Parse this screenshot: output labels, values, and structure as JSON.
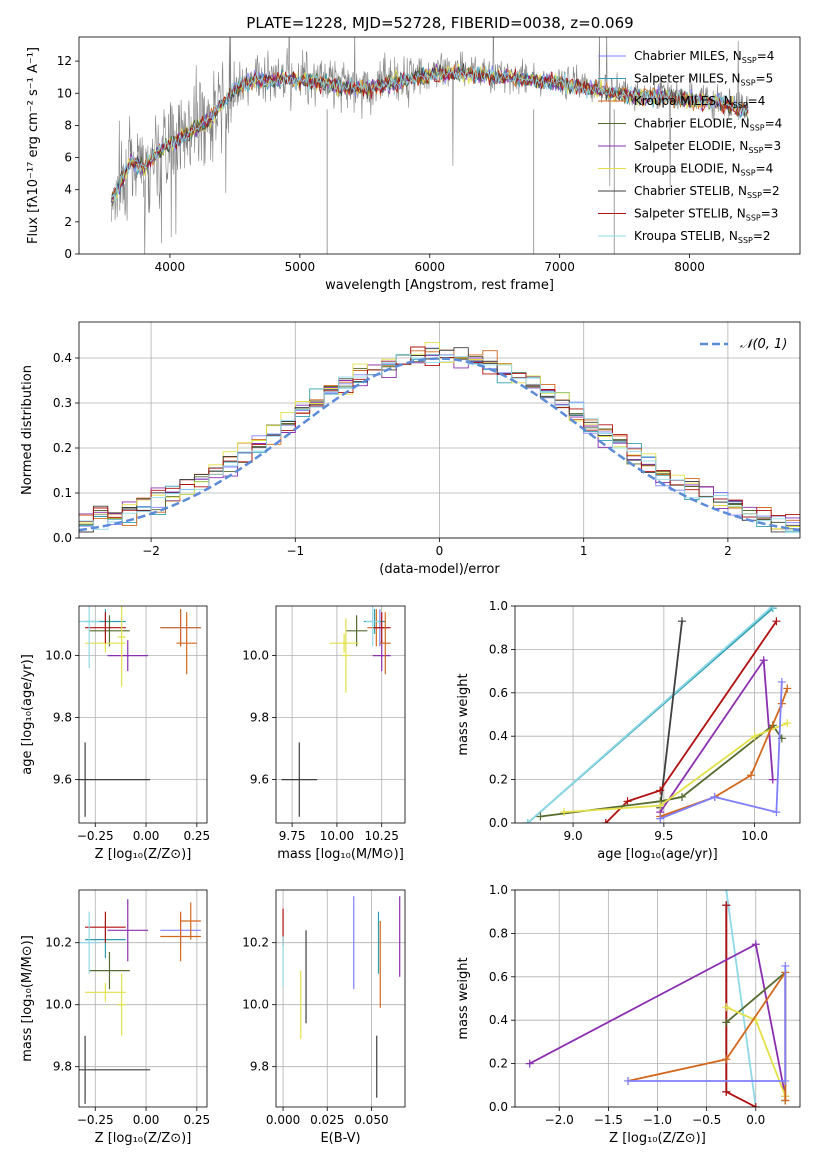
{
  "figure": {
    "title": "PLATE=1228, MJD=52728, FIBERID=0038, z=0.069"
  },
  "colors": [
    "#7f7fff",
    "#2f9fb0",
    "#d2691e",
    "#556b2f",
    "#8b2fb0",
    "#e3e048",
    "#3f3f3f",
    "#b01010",
    "#8fd8e8"
  ],
  "chart_data": [
    {
      "id": "spectrum",
      "type": "line",
      "title": "PLATE=1228, MJD=52728, FIBERID=0038, z=0.069",
      "xlabel": "wavelength [Angstrom, rest frame]",
      "ylabel": "Flux [fλ10⁻¹⁷ erg cm⁻² s⁻¹ A⁻¹]",
      "xlim": [
        3300,
        8850
      ],
      "ylim": [
        0,
        13.5
      ],
      "xticks": [
        4000,
        5000,
        6000,
        7000,
        8000
      ],
      "yticks": [
        0,
        2,
        4,
        6,
        8,
        10,
        12
      ],
      "grid": false,
      "legend_position": "top-right",
      "data_color": "#808080",
      "data_x": [
        3550,
        3700,
        3800,
        3900,
        4000,
        4100,
        4200,
        4300,
        4400,
        4500,
        4600,
        4700,
        4800,
        4900,
        5000,
        5200,
        5400,
        5600,
        5800,
        6000,
        6200,
        6400,
        6600,
        6800,
        7000,
        7200,
        7400,
        7600,
        7800,
        8000,
        8200,
        8400
      ],
      "data_y": [
        3.5,
        6.0,
        5.5,
        6.5,
        7.0,
        7.5,
        8.0,
        8.5,
        9.5,
        10.5,
        10.8,
        11.0,
        11.0,
        11.2,
        11.0,
        10.8,
        10.5,
        10.6,
        11.0,
        11.3,
        11.5,
        11.3,
        11.2,
        11.0,
        10.8,
        10.5,
        10.2,
        10.0,
        10.0,
        9.8,
        9.6,
        9.2
      ],
      "series": [
        {
          "name": "Chabrier MILES, N_SSP=4"
        },
        {
          "name": "Salpeter MILES, N_SSP=5"
        },
        {
          "name": "Kroupa MILES, N_SSP=4"
        },
        {
          "name": "Chabrier ELODIE, N_SSP=4"
        },
        {
          "name": "Salpeter ELODIE, N_SSP=3"
        },
        {
          "name": "Kroupa ELODIE, N_SSP=4"
        },
        {
          "name": "Chabrier STELIB, N_SSP=2"
        },
        {
          "name": "Salpeter STELIB, N_SSP=3"
        },
        {
          "name": "Kroupa STELIB, N_SSP=2"
        }
      ],
      "legend": [
        {
          "base": "Chabrier MILES, N",
          "sub": "SSP",
          "tail": "=4"
        },
        {
          "base": "Salpeter MILES, N",
          "sub": "SSP",
          "tail": "=5"
        },
        {
          "base": "Kroupa MILES, N",
          "sub": "SSP",
          "tail": "=4"
        },
        {
          "base": "Chabrier ELODIE, N",
          "sub": "SSP",
          "tail": "=4"
        },
        {
          "base": "Salpeter ELODIE, N",
          "sub": "SSP",
          "tail": "=3"
        },
        {
          "base": "Kroupa ELODIE, N",
          "sub": "SSP",
          "tail": "=4"
        },
        {
          "base": "Chabrier STELIB, N",
          "sub": "SSP",
          "tail": "=2"
        },
        {
          "base": "Salpeter STELIB, N",
          "sub": "SSP",
          "tail": "=3"
        },
        {
          "base": "Kroupa STELIB, N",
          "sub": "SSP",
          "tail": "=2"
        }
      ]
    },
    {
      "id": "residuals",
      "type": "line",
      "xlabel": "(data-model)/error",
      "ylabel": "Normed distribution",
      "xlim": [
        -2.5,
        2.5
      ],
      "ylim": [
        0,
        0.48
      ],
      "xticks": [
        -2,
        -1,
        0,
        1,
        2
      ],
      "yticks": [
        0.0,
        0.1,
        0.2,
        0.3,
        0.4
      ],
      "grid": true,
      "legend_position": "top-right",
      "legend_label": "𝒩(0, 1)",
      "gaussian": {
        "mean": 0,
        "sigma": 1
      },
      "bin_width": 0.1
    },
    {
      "id": "age-vs-Z",
      "type": "scatter",
      "xlabel": "Z [log₁₀(Z/Z⊙)]",
      "ylabel": "age  [log₁₀(age/yr)]",
      "xlim": [
        -0.33,
        0.3
      ],
      "ylim": [
        9.46,
        10.16
      ],
      "xticks": [
        -0.25,
        0.0,
        0.25
      ],
      "xtick_labels": [
        "−0.25",
        "0.00",
        "0.25"
      ],
      "yticks": [
        9.6,
        9.8,
        10.0
      ],
      "ytick_labels": [
        "9.6",
        "9.8",
        "10.0"
      ],
      "grid": true,
      "points": [
        {
          "x": 0.17,
          "y": 10.09,
          "xerr": 0.1,
          "yerr": 0.06,
          "c": 0
        },
        {
          "x": -0.2,
          "y": 10.11,
          "xerr": 0.1,
          "yerr": 0.04,
          "c": 1
        },
        {
          "x": 0.17,
          "y": 10.09,
          "xerr": 0.1,
          "yerr": 0.06,
          "c": 2
        },
        {
          "x": -0.18,
          "y": 10.08,
          "xerr": 0.1,
          "yerr": 0.05,
          "c": 3
        },
        {
          "x": -0.09,
          "y": 10.0,
          "xerr": 0.1,
          "yerr": 0.05,
          "c": 4
        },
        {
          "x": -0.2,
          "y": 10.04,
          "xerr": 0.1,
          "yerr": 0.03,
          "c": 5
        },
        {
          "x": -0.3,
          "y": 9.6,
          "xerr": 0.32,
          "yerr": 0.12,
          "c": 6
        },
        {
          "x": -0.2,
          "y": 10.09,
          "xerr": 0.1,
          "yerr": 0.05,
          "c": 7
        },
        {
          "x": -0.28,
          "y": 10.11,
          "xerr": 0.05,
          "yerr": 0.15,
          "c": 8
        },
        {
          "x": 0.2,
          "y": 10.04,
          "xerr": 0.05,
          "yerr": 0.1,
          "c": 2
        },
        {
          "x": -0.12,
          "y": 10.06,
          "xerr": 0.02,
          "yerr": 0.16,
          "c": 5
        }
      ]
    },
    {
      "id": "age-vs-mass",
      "type": "scatter",
      "xlabel": "mass [log₁₀(M/M⊙)]",
      "ylabel": "",
      "xlim": [
        9.66,
        10.38
      ],
      "ylim": [
        9.46,
        10.16
      ],
      "xticks": [
        9.75,
        10.0,
        10.25
      ],
      "xtick_labels": [
        "9.75",
        "10.00",
        "10.25"
      ],
      "yticks": [
        9.6,
        9.8,
        10.0
      ],
      "ytick_labels": [
        "9.6",
        "9.8",
        "10.0"
      ],
      "grid": true,
      "points": [
        {
          "x": 10.24,
          "y": 10.09,
          "xerr": 0.05,
          "yerr": 0.06,
          "c": 0
        },
        {
          "x": 10.21,
          "y": 10.11,
          "xerr": 0.06,
          "yerr": 0.04,
          "c": 1
        },
        {
          "x": 10.22,
          "y": 10.09,
          "xerr": 0.05,
          "yerr": 0.06,
          "c": 2
        },
        {
          "x": 10.11,
          "y": 10.08,
          "xerr": 0.06,
          "yerr": 0.05,
          "c": 3
        },
        {
          "x": 10.25,
          "y": 10.0,
          "xerr": 0.05,
          "yerr": 0.05,
          "c": 4
        },
        {
          "x": 10.04,
          "y": 10.04,
          "xerr": 0.08,
          "yerr": 0.03,
          "c": 5
        },
        {
          "x": 9.79,
          "y": 9.6,
          "xerr": 0.1,
          "yerr": 0.12,
          "c": 6
        },
        {
          "x": 10.25,
          "y": 10.09,
          "xerr": 0.05,
          "yerr": 0.05,
          "c": 7
        },
        {
          "x": 10.2,
          "y": 10.11,
          "xerr": 0.04,
          "yerr": 0.08,
          "c": 8
        },
        {
          "x": 10.27,
          "y": 10.04,
          "xerr": 0.03,
          "yerr": 0.1,
          "c": 2
        },
        {
          "x": 10.05,
          "y": 10.0,
          "xerr": 0.02,
          "yerr": 0.12,
          "c": 5
        }
      ]
    },
    {
      "id": "weight-vs-age",
      "type": "line",
      "xlabel": "age  [log₁₀(age/yr)]",
      "ylabel": "mass weight",
      "xlim": [
        8.68,
        10.25
      ],
      "ylim": [
        0,
        1.0
      ],
      "xticks": [
        9.0,
        9.5,
        10.0
      ],
      "xtick_labels": [
        "9.0",
        "9.5",
        "10.0"
      ],
      "yticks": [
        0.0,
        0.2,
        0.4,
        0.6,
        0.8,
        1.0
      ],
      "ytick_labels": [
        "0.0",
        "0.2",
        "0.4",
        "0.6",
        "0.8",
        "1.0"
      ],
      "grid": true,
      "series": [
        {
          "c": 1,
          "x": [
            8.75,
            10.1
          ],
          "y": [
            0.0,
            0.99
          ]
        },
        {
          "c": 8,
          "x": [
            8.75,
            10.1
          ],
          "y": [
            0.0,
            1.0
          ]
        },
        {
          "c": 6,
          "x": [
            9.48,
            9.6
          ],
          "y": [
            0.07,
            0.93
          ]
        },
        {
          "c": 7,
          "x": [
            9.18,
            9.3,
            9.48,
            10.12
          ],
          "y": [
            0.0,
            0.1,
            0.15,
            0.93
          ]
        },
        {
          "c": 4,
          "x": [
            9.48,
            10.05,
            10.1
          ],
          "y": [
            0.05,
            0.75,
            0.2
          ]
        },
        {
          "c": 3,
          "x": [
            8.82,
            9.48,
            9.6,
            10.1,
            10.15
          ],
          "y": [
            0.03,
            0.1,
            0.12,
            0.45,
            0.39
          ]
        },
        {
          "c": 5,
          "x": [
            8.95,
            9.48,
            10.0,
            10.18
          ],
          "y": [
            0.05,
            0.08,
            0.4,
            0.46
          ]
        },
        {
          "c": 2,
          "x": [
            9.48,
            9.78,
            9.98,
            10.15,
            10.18
          ],
          "y": [
            0.03,
            0.12,
            0.22,
            0.55,
            0.62
          ]
        },
        {
          "c": 0,
          "x": [
            9.48,
            9.78,
            10.12,
            10.15
          ],
          "y": [
            0.02,
            0.12,
            0.05,
            0.65
          ]
        }
      ]
    },
    {
      "id": "mass-vs-Z",
      "type": "scatter",
      "xlabel": "Z [log₁₀(Z/Z⊙)]",
      "ylabel": "mass [log₁₀(M/M⊙)]",
      "xlim": [
        -0.33,
        0.3
      ],
      "ylim": [
        9.67,
        10.37
      ],
      "xticks": [
        -0.25,
        0.0,
        0.25
      ],
      "xtick_labels": [
        "−0.25",
        "0.00",
        "0.25"
      ],
      "yticks": [
        9.8,
        10.0,
        10.2
      ],
      "ytick_labels": [
        "9.8",
        "10.0",
        "10.2"
      ],
      "grid": true,
      "points": [
        {
          "x": 0.17,
          "y": 10.24,
          "xerr": 0.1,
          "yerr": 0.05,
          "c": 0
        },
        {
          "x": -0.2,
          "y": 10.21,
          "xerr": 0.1,
          "yerr": 0.06,
          "c": 1
        },
        {
          "x": 0.17,
          "y": 10.22,
          "xerr": 0.1,
          "yerr": 0.08,
          "c": 2
        },
        {
          "x": -0.18,
          "y": 10.11,
          "xerr": 0.1,
          "yerr": 0.06,
          "c": 3
        },
        {
          "x": -0.09,
          "y": 10.24,
          "xerr": 0.1,
          "yerr": 0.1,
          "c": 4
        },
        {
          "x": -0.2,
          "y": 10.04,
          "xerr": 0.1,
          "yerr": 0.03,
          "c": 5
        },
        {
          "x": -0.3,
          "y": 9.79,
          "xerr": 0.32,
          "yerr": 0.11,
          "c": 6
        },
        {
          "x": -0.2,
          "y": 10.25,
          "xerr": 0.1,
          "yerr": 0.05,
          "c": 7
        },
        {
          "x": -0.28,
          "y": 10.2,
          "xerr": 0.05,
          "yerr": 0.1,
          "c": 8
        },
        {
          "x": 0.22,
          "y": 10.27,
          "xerr": 0.05,
          "yerr": 0.06,
          "c": 2
        },
        {
          "x": -0.12,
          "y": 10.0,
          "xerr": 0.02,
          "yerr": 0.1,
          "c": 5
        }
      ]
    },
    {
      "id": "mass-vs-ebv",
      "type": "scatter",
      "xlabel": "E(B-V)",
      "ylabel": "",
      "xlim": [
        -0.004,
        0.069
      ],
      "ylim": [
        9.67,
        10.37
      ],
      "xticks": [
        0.0,
        0.025,
        0.05
      ],
      "xtick_labels": [
        "0.000",
        "0.025",
        "0.050"
      ],
      "yticks": [
        9.8,
        10.0,
        10.2
      ],
      "ytick_labels": [
        "9.8",
        "10.0",
        "10.2"
      ],
      "grid": true,
      "points": [
        {
          "x": 0.0,
          "y": 10.25,
          "xerr": 0,
          "yerr": 0.06,
          "c": 7
        },
        {
          "x": 0.0,
          "y": 10.14,
          "xerr": 0,
          "yerr": 0.08,
          "c": 8
        },
        {
          "x": 0.01,
          "y": 10.0,
          "xerr": 0,
          "yerr": 0.11,
          "c": 5
        },
        {
          "x": 0.013,
          "y": 10.09,
          "xerr": 0,
          "yerr": 0.15,
          "c": 6
        },
        {
          "x": 0.04,
          "y": 10.2,
          "xerr": 0,
          "yerr": 0.15,
          "c": 0
        },
        {
          "x": 0.053,
          "y": 9.8,
          "xerr": 0,
          "yerr": 0.1,
          "c": 6
        },
        {
          "x": 0.054,
          "y": 10.2,
          "xerr": 0,
          "yerr": 0.1,
          "c": 1
        },
        {
          "x": 0.055,
          "y": 10.13,
          "xerr": 0,
          "yerr": 0.14,
          "c": 2
        },
        {
          "x": 0.066,
          "y": 10.22,
          "xerr": 0,
          "yerr": 0.13,
          "c": 4
        }
      ]
    },
    {
      "id": "weight-vs-Z",
      "type": "line",
      "xlabel": "Z [log₁₀(Z/Z⊙)]",
      "ylabel": "mass weight",
      "xlim": [
        -2.45,
        0.45
      ],
      "ylim": [
        0,
        1.0
      ],
      "xticks": [
        -2.0,
        -1.5,
        -1.0,
        -0.5,
        0.0
      ],
      "xtick_labels": [
        "−2.0",
        "−1.5",
        "−1.0",
        "−0.5",
        "0.0"
      ],
      "yticks": [
        0.0,
        0.2,
        0.4,
        0.6,
        0.8,
        1.0
      ],
      "ytick_labels": [
        "0.0",
        "0.2",
        "0.4",
        "0.6",
        "0.8",
        "1.0"
      ],
      "grid": true,
      "series": [
        {
          "c": 8,
          "x": [
            -0.3,
            0.0
          ],
          "y": [
            1.0,
            0.0
          ]
        },
        {
          "c": 6,
          "x": [
            -0.3,
            -0.3
          ],
          "y": [
            0.93,
            0.07
          ]
        },
        {
          "c": 7,
          "x": [
            -0.3,
            -0.3,
            0.0
          ],
          "y": [
            0.93,
            0.07,
            0.0
          ]
        },
        {
          "c": 4,
          "x": [
            -2.3,
            0.0,
            0.3
          ],
          "y": [
            0.2,
            0.75,
            0.05
          ]
        },
        {
          "c": 3,
          "x": [
            -0.3,
            0.3,
            0.3
          ],
          "y": [
            0.39,
            0.62,
            0.03
          ]
        },
        {
          "c": 5,
          "x": [
            -0.3,
            0.0,
            0.3
          ],
          "y": [
            0.46,
            0.4,
            0.05
          ]
        },
        {
          "c": 2,
          "x": [
            -1.3,
            -0.3,
            0.3,
            0.3
          ],
          "y": [
            0.12,
            0.22,
            0.62,
            0.03
          ]
        },
        {
          "c": 0,
          "x": [
            -1.3,
            0.3,
            0.3
          ],
          "y": [
            0.12,
            0.12,
            0.65
          ]
        }
      ]
    }
  ]
}
